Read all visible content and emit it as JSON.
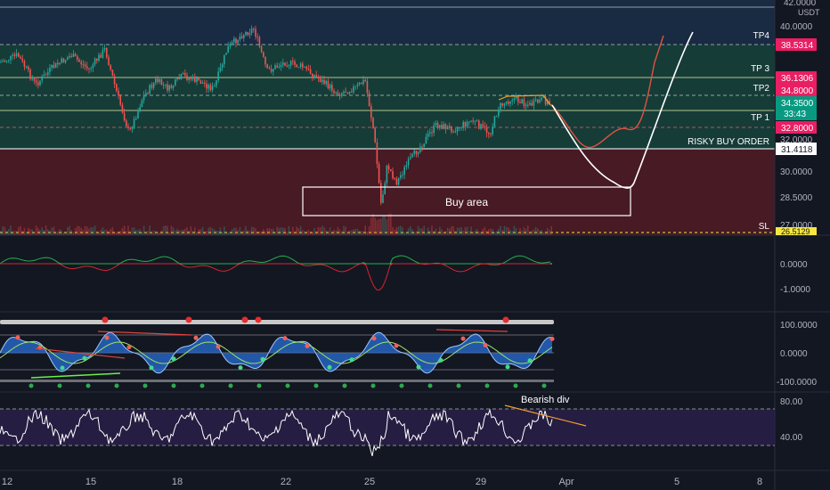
{
  "currency": "USDT",
  "main": {
    "price_ticks": [
      "42.0000",
      "40.0000",
      "32.0000",
      "30.0000",
      "28.5000",
      "27.0000"
    ],
    "levels": [
      {
        "label": "TP4",
        "price": "38.5314",
        "color": "#e91e63"
      },
      {
        "label": "TP 3",
        "price": "36.1306",
        "color": "#e91e63"
      },
      {
        "label": "TP2",
        "price": "34.8000",
        "color": "#e91e63"
      },
      {
        "label": "TP 1",
        "price": "32.8000",
        "color": "#e91e63"
      },
      {
        "label": "RISKY BUY ORDER",
        "price": "31.4118",
        "color": "#ffffff"
      },
      {
        "label": "SL",
        "price": "26.5129",
        "color": "#f5e642"
      }
    ],
    "current_price": {
      "price": "34.3500",
      "countdown": "33:43",
      "color": "#089981"
    },
    "buy_area_label": "Buy area",
    "colors": {
      "tp_zone": "#1a5b4a",
      "loss_zone": "#6a1d26",
      "upper_zone": "#1f3b5e"
    }
  },
  "indicators": {
    "macd_ticks": [
      "0.0000",
      "-1.0000"
    ],
    "osc_ticks": [
      "100.0000",
      "0.0000",
      "-100.0000"
    ],
    "rsi_ticks": [
      "80.00",
      "40.00"
    ],
    "rsi_annotation": "Bearish div"
  },
  "time_axis": [
    "12",
    "15",
    "18",
    "22",
    "25",
    "29",
    "Apr",
    "5",
    "8"
  ]
}
